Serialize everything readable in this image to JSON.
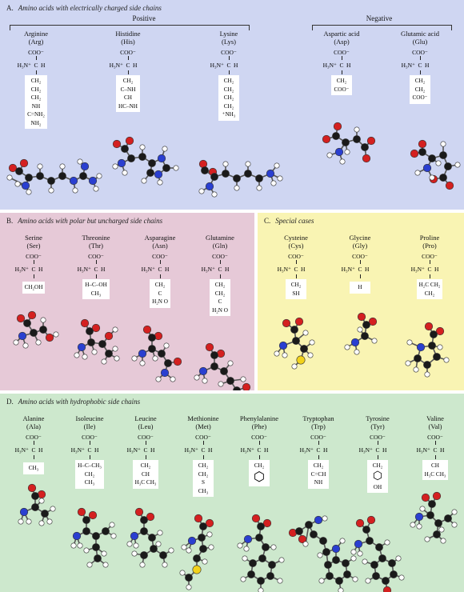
{
  "panels": {
    "A": {
      "letter": "A.",
      "title": "Amino acids with electrically charged side chains",
      "positive_label": "Positive",
      "negative_label": "Negative",
      "amino_acids": [
        {
          "name": "Arginine",
          "abbr": "(Arg)",
          "side": [
            "CH₂",
            "CH₂",
            "CH₂",
            "NH",
            "C=NH₂",
            "NH₂"
          ]
        },
        {
          "name": "Histidine",
          "abbr": "(His)",
          "side": [
            "CH₂",
            "C–NH",
            "CH",
            "HC–NH"
          ]
        },
        {
          "name": "Lysine",
          "abbr": "(Lys)",
          "side": [
            "CH₂",
            "CH₂",
            "CH₂",
            "CH₂",
            "⁺NH₃"
          ]
        },
        {
          "name": "Aspartic acid",
          "abbr": "(Asp)",
          "side": [
            "CH₂",
            "COO⁻"
          ]
        },
        {
          "name": "Glutamic acid",
          "abbr": "(Glu)",
          "side": [
            "CH₂",
            "CH₂",
            "COO⁻"
          ]
        }
      ]
    },
    "B": {
      "letter": "B.",
      "title": "Amino acids with polar but uncharged side chains",
      "amino_acids": [
        {
          "name": "Serine",
          "abbr": "(Ser)",
          "side": [
            "CH₂OH"
          ]
        },
        {
          "name": "Threonine",
          "abbr": "(Thr)",
          "side": [
            "H–C–OH",
            "CH₃"
          ]
        },
        {
          "name": "Asparagine",
          "abbr": "(Asn)",
          "side": [
            "CH₂",
            "C",
            "H₂N   O"
          ]
        },
        {
          "name": "Glutamine",
          "abbr": "(Gln)",
          "side": [
            "CH₂",
            "CH₂",
            "C",
            "H₂N   O"
          ]
        }
      ]
    },
    "C": {
      "letter": "C.",
      "title": "Special cases",
      "amino_acids": [
        {
          "name": "Cysteine",
          "abbr": "(Cys)",
          "side": [
            "CH₂",
            "SH"
          ]
        },
        {
          "name": "Glycine",
          "abbr": "(Gly)",
          "side": [
            "H"
          ]
        },
        {
          "name": "Proline",
          "abbr": "(Pro)",
          "side": [
            "H₂C   CH₂",
            "CH₂"
          ]
        }
      ]
    },
    "D": {
      "letter": "D.",
      "title": "Amino acids with hydrophobic side chains",
      "amino_acids": [
        {
          "name": "Alanine",
          "abbr": "(Ala)",
          "side": [
            "CH₃"
          ]
        },
        {
          "name": "Isoleucine",
          "abbr": "(Ile)",
          "side": [
            "H–C–CH₃",
            "CH₂",
            "CH₃"
          ]
        },
        {
          "name": "Leucine",
          "abbr": "(Leu)",
          "side": [
            "CH₂",
            "CH",
            "H₃C   CH₃"
          ]
        },
        {
          "name": "Methionine",
          "abbr": "(Met)",
          "side": [
            "CH₂",
            "CH₂",
            "S",
            "CH₃"
          ]
        },
        {
          "name": "Phenylalanine",
          "abbr": "(Phe)",
          "side": [
            "CH₂",
            "⬡"
          ]
        },
        {
          "name": "Tryptophan",
          "abbr": "(Trp)",
          "side": [
            "CH₂",
            "C=CH",
            "NH"
          ]
        },
        {
          "name": "Tyrosine",
          "abbr": "(Tyr)",
          "side": [
            "CH₂",
            "⬡",
            "OH"
          ]
        },
        {
          "name": "Valine",
          "abbr": "(Val)",
          "side": [
            "CH",
            "H₃C   CH₃"
          ]
        }
      ]
    }
  },
  "backbone": {
    "top": "COO⁻",
    "left": "H₃N⁺",
    "center": "C",
    "right": "H"
  },
  "colors": {
    "carbon": "#1a1a1a",
    "oxygen": "#d42020",
    "nitrogen": "#2a3fd0",
    "hydrogen": "#ffffff",
    "sulfur": "#f2d21b"
  }
}
